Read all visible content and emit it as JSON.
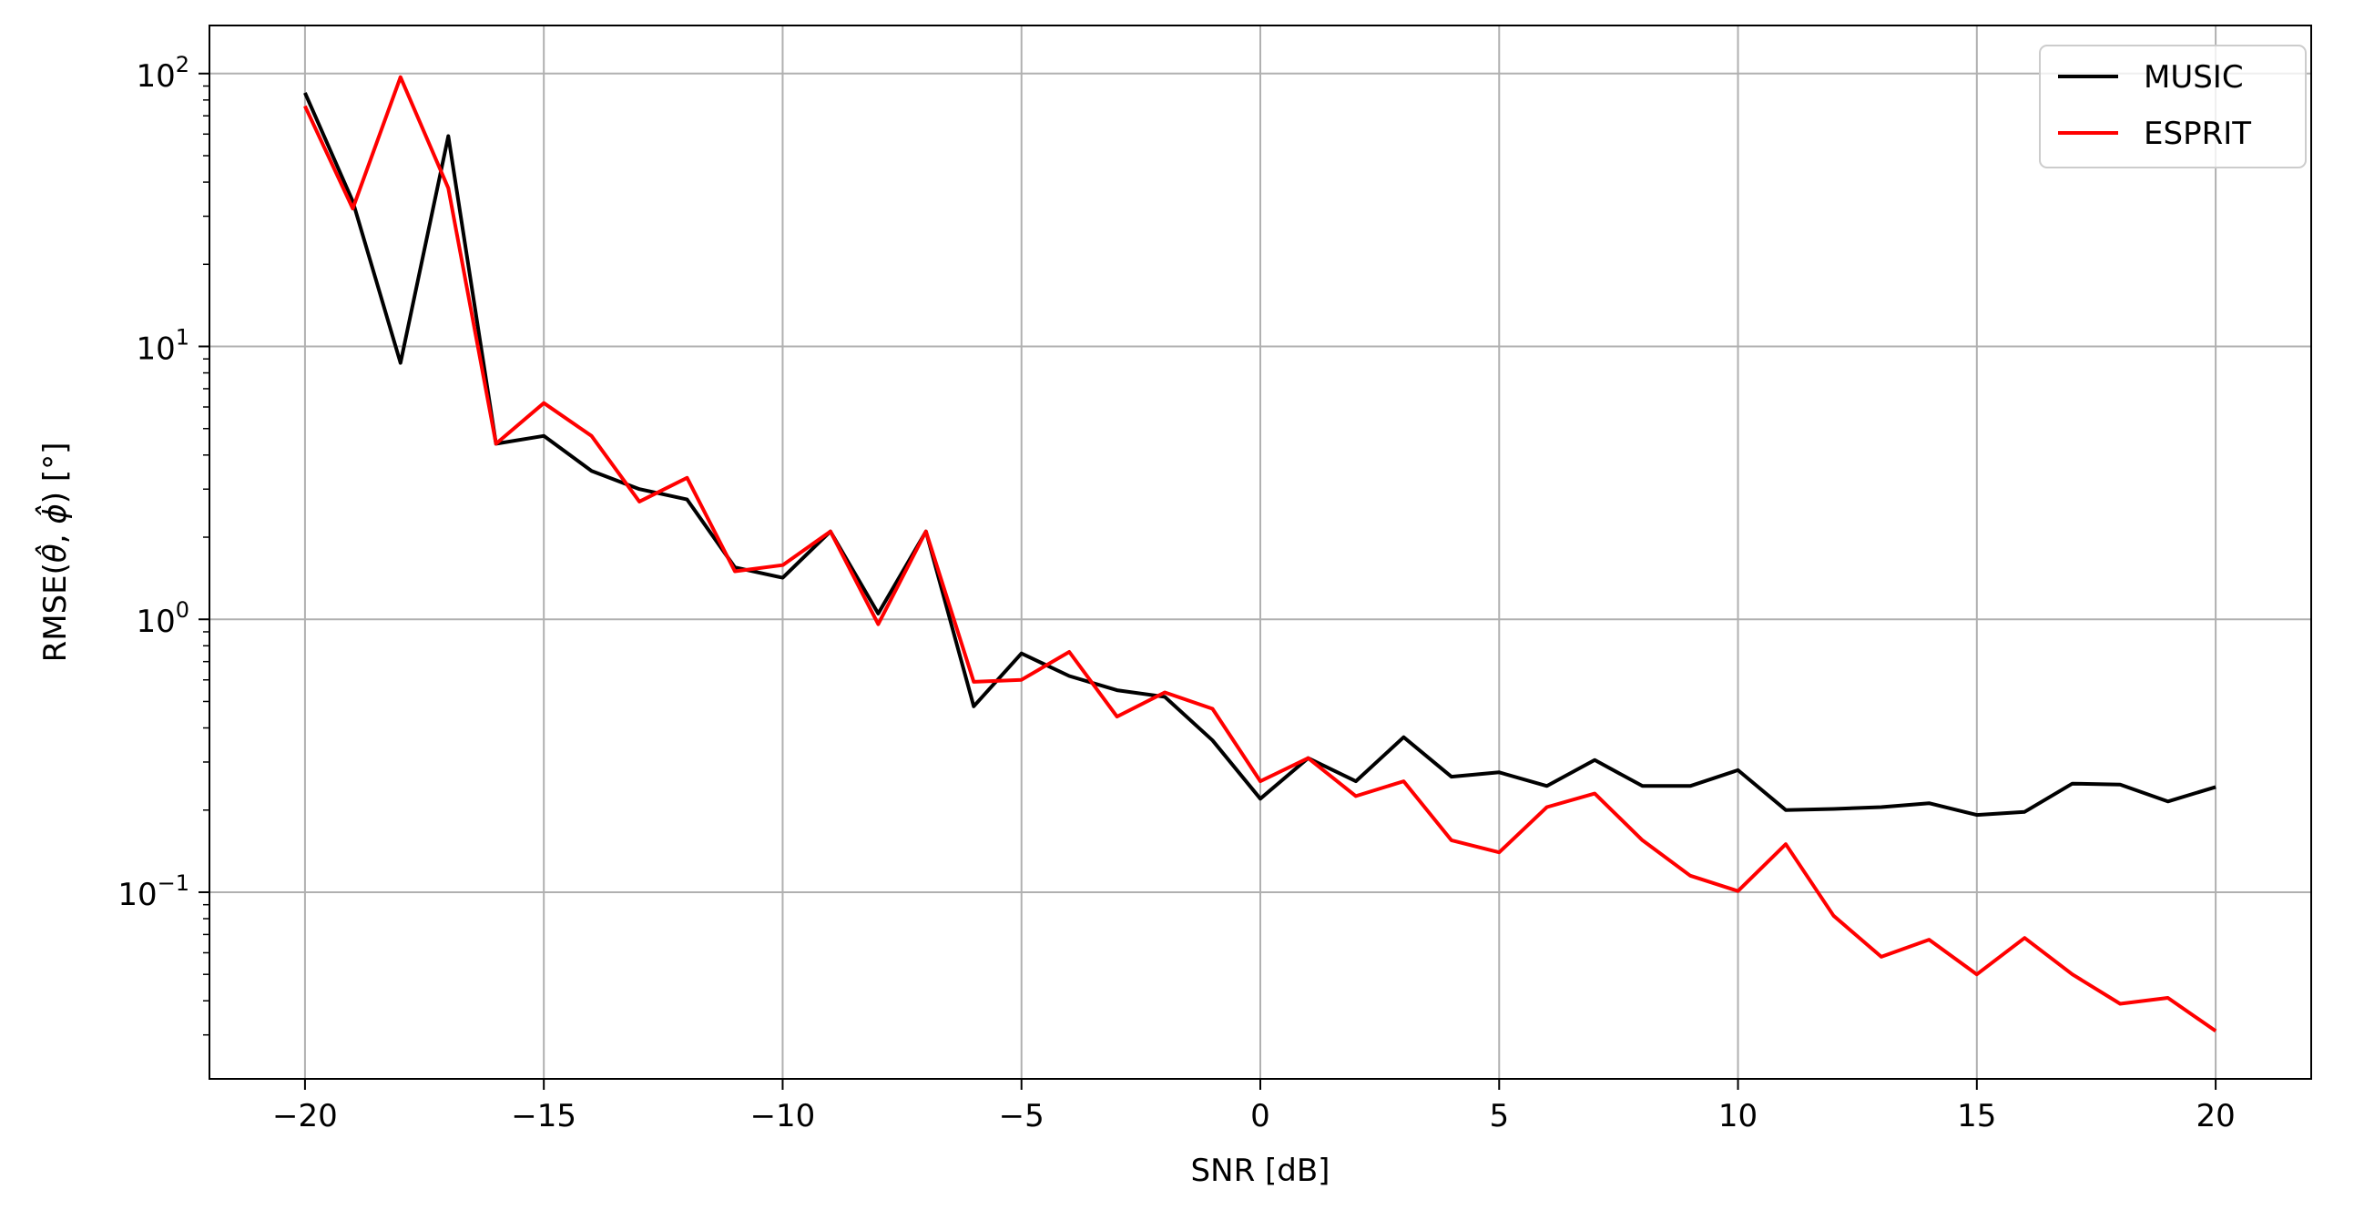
{
  "chart_data": {
    "type": "line",
    "title": "",
    "xlabel": "SNR [dB]",
    "ylabel_prefix": "RMSE(",
    "ylabel_theta": "θ",
    "ylabel_hat": "^",
    "ylabel_comma": ", ",
    "ylabel_phi": "ϕ",
    "ylabel_suffix": ") [°]",
    "xlim": [
      -22,
      22
    ],
    "ylim": [
      0.0207,
      150
    ],
    "yscale": "log",
    "grid": true,
    "legend_position": "top-right",
    "x_ticks": [
      {
        "value": -20,
        "label": "−20"
      },
      {
        "value": -15,
        "label": "−15"
      },
      {
        "value": -10,
        "label": "−10"
      },
      {
        "value": -5,
        "label": "−5"
      },
      {
        "value": 0,
        "label": "0"
      },
      {
        "value": 5,
        "label": "5"
      },
      {
        "value": 10,
        "label": "10"
      },
      {
        "value": 15,
        "label": "15"
      },
      {
        "value": 20,
        "label": "20"
      }
    ],
    "y_ticks": [
      {
        "value": 100,
        "base": "10",
        "exp": "2"
      },
      {
        "value": 10,
        "base": "10",
        "exp": "1"
      },
      {
        "value": 1,
        "base": "10",
        "exp": "0"
      },
      {
        "value": 0.1,
        "base": "10",
        "exp": "−1"
      }
    ],
    "x": [
      -20,
      -19,
      -18,
      -17,
      -16,
      -15,
      -14,
      -13,
      -12,
      -11,
      -10,
      -9,
      -8,
      -7,
      -6,
      -5,
      -4,
      -3,
      -2,
      -1,
      0,
      1,
      2,
      3,
      4,
      5,
      6,
      7,
      8,
      9,
      10,
      11,
      12,
      13,
      14,
      15,
      16,
      17,
      18,
      19,
      20
    ],
    "series": [
      {
        "name": "MUSIC",
        "color": "#000000",
        "values": [
          85,
          34,
          8.7,
          59,
          4.4,
          4.7,
          3.5,
          3.0,
          2.75,
          1.55,
          1.42,
          2.1,
          1.05,
          2.1,
          0.48,
          0.75,
          0.62,
          0.55,
          0.52,
          0.36,
          0.22,
          0.31,
          0.255,
          0.37,
          0.265,
          0.275,
          0.245,
          0.305,
          0.245,
          0.245,
          0.28,
          0.2,
          0.202,
          0.205,
          0.212,
          0.192,
          0.197,
          0.25,
          0.248,
          0.215,
          0.243
        ]
      },
      {
        "name": "ESPRIT",
        "color": "#ff0000",
        "values": [
          76,
          32,
          97,
          38,
          4.4,
          6.2,
          4.7,
          2.7,
          3.3,
          1.5,
          1.58,
          2.1,
          0.96,
          2.1,
          0.59,
          0.6,
          0.76,
          0.44,
          0.54,
          0.47,
          0.255,
          0.31,
          0.225,
          0.255,
          0.155,
          0.14,
          0.205,
          0.23,
          0.155,
          0.115,
          0.101,
          0.15,
          0.082,
          0.058,
          0.067,
          0.05,
          0.068,
          0.05,
          0.039,
          0.041,
          0.031
        ]
      }
    ]
  }
}
